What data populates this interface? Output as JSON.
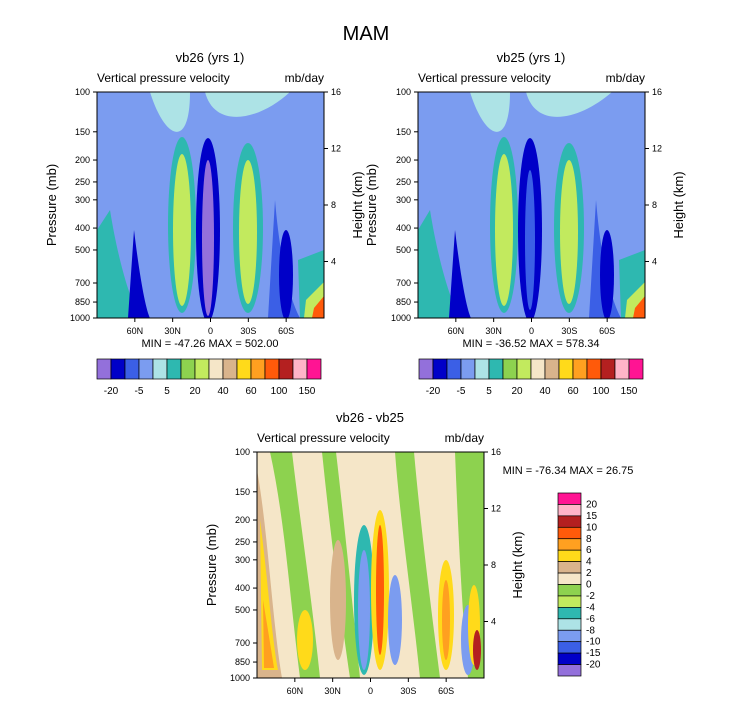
{
  "page_title": "MAM",
  "field_label": "Vertical pressure velocity",
  "units": "mb/day",
  "y_left_label": "Pressure (mb)",
  "y_right_label": "Height (km)",
  "pressure_ticks": [
    "100",
    "150",
    "200",
    "250",
    "300",
    "400",
    "500",
    "700",
    "850",
    "1000"
  ],
  "height_ticks": [
    "16",
    "12",
    "8",
    "4"
  ],
  "lat_ticks": [
    "60N",
    "30N",
    "0",
    "30S",
    "60S"
  ],
  "colors": {
    "v_neg20": "#9370DB",
    "v_neg15": "#0000C8",
    "v_neg10": "#3B5FE6",
    "v_neg5": "#7B9CF0",
    "v_0": "#ADE3E6",
    "v_5": "#2EB8B0",
    "v_10": "#8DD24F",
    "v_20": "#C2EA5E",
    "v_40": "#F5E6C8",
    "v_60": "#D9B48C",
    "v_80": "#FFDA1A",
    "v_100": "#FFA020",
    "v_120": "#FF5A0A",
    "v_140": "#B42020",
    "v_160": "#FFB4C8",
    "v_max": "#FF1493"
  },
  "chart_data": [
    {
      "type": "contour",
      "title": "vb26 (yrs 1)",
      "xlabel": "",
      "ylabel": "Pressure (mb)",
      "y2label": "Height (km)",
      "stats": "MIN = -47.26  MAX = 502.00",
      "colorbar_labels": [
        "-20",
        "-5",
        "5",
        "20",
        "40",
        "60",
        "100",
        "150"
      ],
      "ylim": [
        1000,
        100
      ],
      "y2lim": [
        0,
        16
      ]
    },
    {
      "type": "contour",
      "title": "vb25 (yrs 1)",
      "xlabel": "",
      "ylabel": "Pressure (mb)",
      "y2label": "Height (km)",
      "stats": "MIN = -36.52  MAX = 578.34",
      "colorbar_labels": [
        "-20",
        "-5",
        "5",
        "20",
        "40",
        "60",
        "100",
        "150"
      ],
      "ylim": [
        1000,
        100
      ],
      "y2lim": [
        0,
        16
      ]
    },
    {
      "type": "contour",
      "title": "vb26 - vb25",
      "xlabel": "",
      "ylabel": "Pressure (mb)",
      "y2label": "Height (km)",
      "stats": "MIN = -76.34  MAX = 26.75",
      "colorbar_labels": [
        "20",
        "15",
        "10",
        "8",
        "6",
        "4",
        "2",
        "0",
        "-2",
        "-4",
        "-6",
        "-8",
        "-10",
        "-15",
        "-20"
      ],
      "ylim": [
        1000,
        100
      ],
      "y2lim": [
        0,
        16
      ]
    }
  ]
}
